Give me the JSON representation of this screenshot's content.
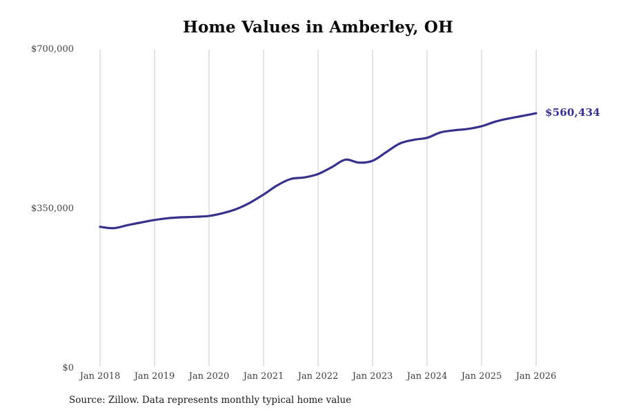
{
  "chart_data": {
    "type": "line",
    "title": "Home Values in Amberley, OH",
    "source": "Source: Zillow. Data represents monthly typical home value",
    "xlabel": "",
    "ylabel": "",
    "ylim": [
      0,
      700000
    ],
    "x_range": [
      "2018-01",
      "2026-01"
    ],
    "grid": "vertical-only",
    "legend": "none",
    "y_ticks": [
      {
        "label": "$0",
        "value": 0
      },
      {
        "label": "$350,000",
        "value": 350000
      },
      {
        "label": "$700,000",
        "value": 700000
      }
    ],
    "x_ticks": [
      {
        "label": "Jan 2018",
        "date": "2018-01"
      },
      {
        "label": "Jan 2019",
        "date": "2019-01"
      },
      {
        "label": "Jan 2020",
        "date": "2020-01"
      },
      {
        "label": "Jan 2021",
        "date": "2021-01"
      },
      {
        "label": "Jan 2022",
        "date": "2022-01"
      },
      {
        "label": "Jan 2023",
        "date": "2023-01"
      },
      {
        "label": "Jan 2024",
        "date": "2024-01"
      },
      {
        "label": "Jan 2025",
        "date": "2025-01"
      },
      {
        "label": "Jan 2026",
        "date": "2026-01"
      }
    ],
    "series": [
      {
        "name": "Typical home value",
        "points": [
          [
            "2018-01",
            311000
          ],
          [
            "2018-04",
            308000
          ],
          [
            "2018-07",
            314500
          ],
          [
            "2018-10",
            320500
          ],
          [
            "2019-01",
            326000
          ],
          [
            "2019-04",
            330000
          ],
          [
            "2019-07",
            332000
          ],
          [
            "2019-10",
            333000
          ],
          [
            "2020-01",
            335000
          ],
          [
            "2020-04",
            341000
          ],
          [
            "2020-07",
            350000
          ],
          [
            "2020-10",
            364000
          ],
          [
            "2021-01",
            382000
          ],
          [
            "2021-04",
            402000
          ],
          [
            "2021-07",
            416000
          ],
          [
            "2021-10",
            419500
          ],
          [
            "2022-01",
            427000
          ],
          [
            "2022-04",
            442000
          ],
          [
            "2022-07",
            458500
          ],
          [
            "2022-10",
            452000
          ],
          [
            "2023-01",
            456000
          ],
          [
            "2023-04",
            475000
          ],
          [
            "2023-07",
            494000
          ],
          [
            "2023-10",
            502000
          ],
          [
            "2024-01",
            506500
          ],
          [
            "2024-04",
            518500
          ],
          [
            "2024-07",
            523000
          ],
          [
            "2024-10",
            526000
          ],
          [
            "2025-01",
            532000
          ],
          [
            "2025-04",
            542000
          ],
          [
            "2025-07",
            549000
          ],
          [
            "2025-10",
            554500
          ],
          [
            "2026-01",
            560434
          ]
        ]
      }
    ],
    "end_label": "$560,434",
    "end_value": 560434,
    "colors": {
      "line": "#38318c",
      "grid": "#c9c9c9",
      "tick_text": "#444444",
      "title_text": "#0a0a0a",
      "source_text": "#1a1a1a",
      "end_label": "#38318c",
      "background": "#ffffff"
    }
  }
}
